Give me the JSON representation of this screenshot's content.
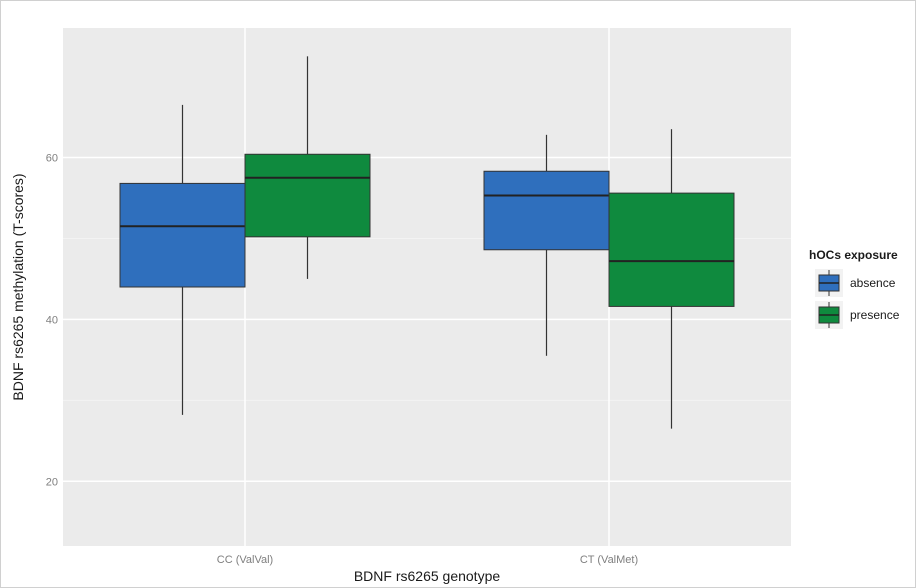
{
  "chart_data": {
    "type": "boxplot",
    "title": "",
    "xlabel": "BDNF rs6265 genotype",
    "ylabel": "BDNF rs6265 methylation (T-scores)",
    "categories": [
      "CC (ValVal)",
      "CT (ValMet)"
    ],
    "ylim": [
      12,
      76
    ],
    "yticks": [
      20,
      40,
      60
    ],
    "grid": true,
    "legend": {
      "title": "hOCs exposure",
      "position": "right"
    },
    "series": [
      {
        "name": "absence",
        "color": "#2f6fbd",
        "boxes": [
          {
            "min": 28.2,
            "q1": 44.0,
            "median": 51.5,
            "q3": 56.8,
            "max": 66.5
          },
          {
            "min": 35.5,
            "q1": 48.6,
            "median": 55.3,
            "q3": 58.3,
            "max": 62.8
          }
        ]
      },
      {
        "name": "presence",
        "color": "#0f8a3e",
        "boxes": [
          {
            "min": 45.0,
            "q1": 50.2,
            "median": 57.5,
            "q3": 60.4,
            "max": 72.5
          },
          {
            "min": 26.5,
            "q1": 41.6,
            "median": 47.2,
            "q3": 55.6,
            "max": 63.5
          }
        ]
      }
    ]
  }
}
